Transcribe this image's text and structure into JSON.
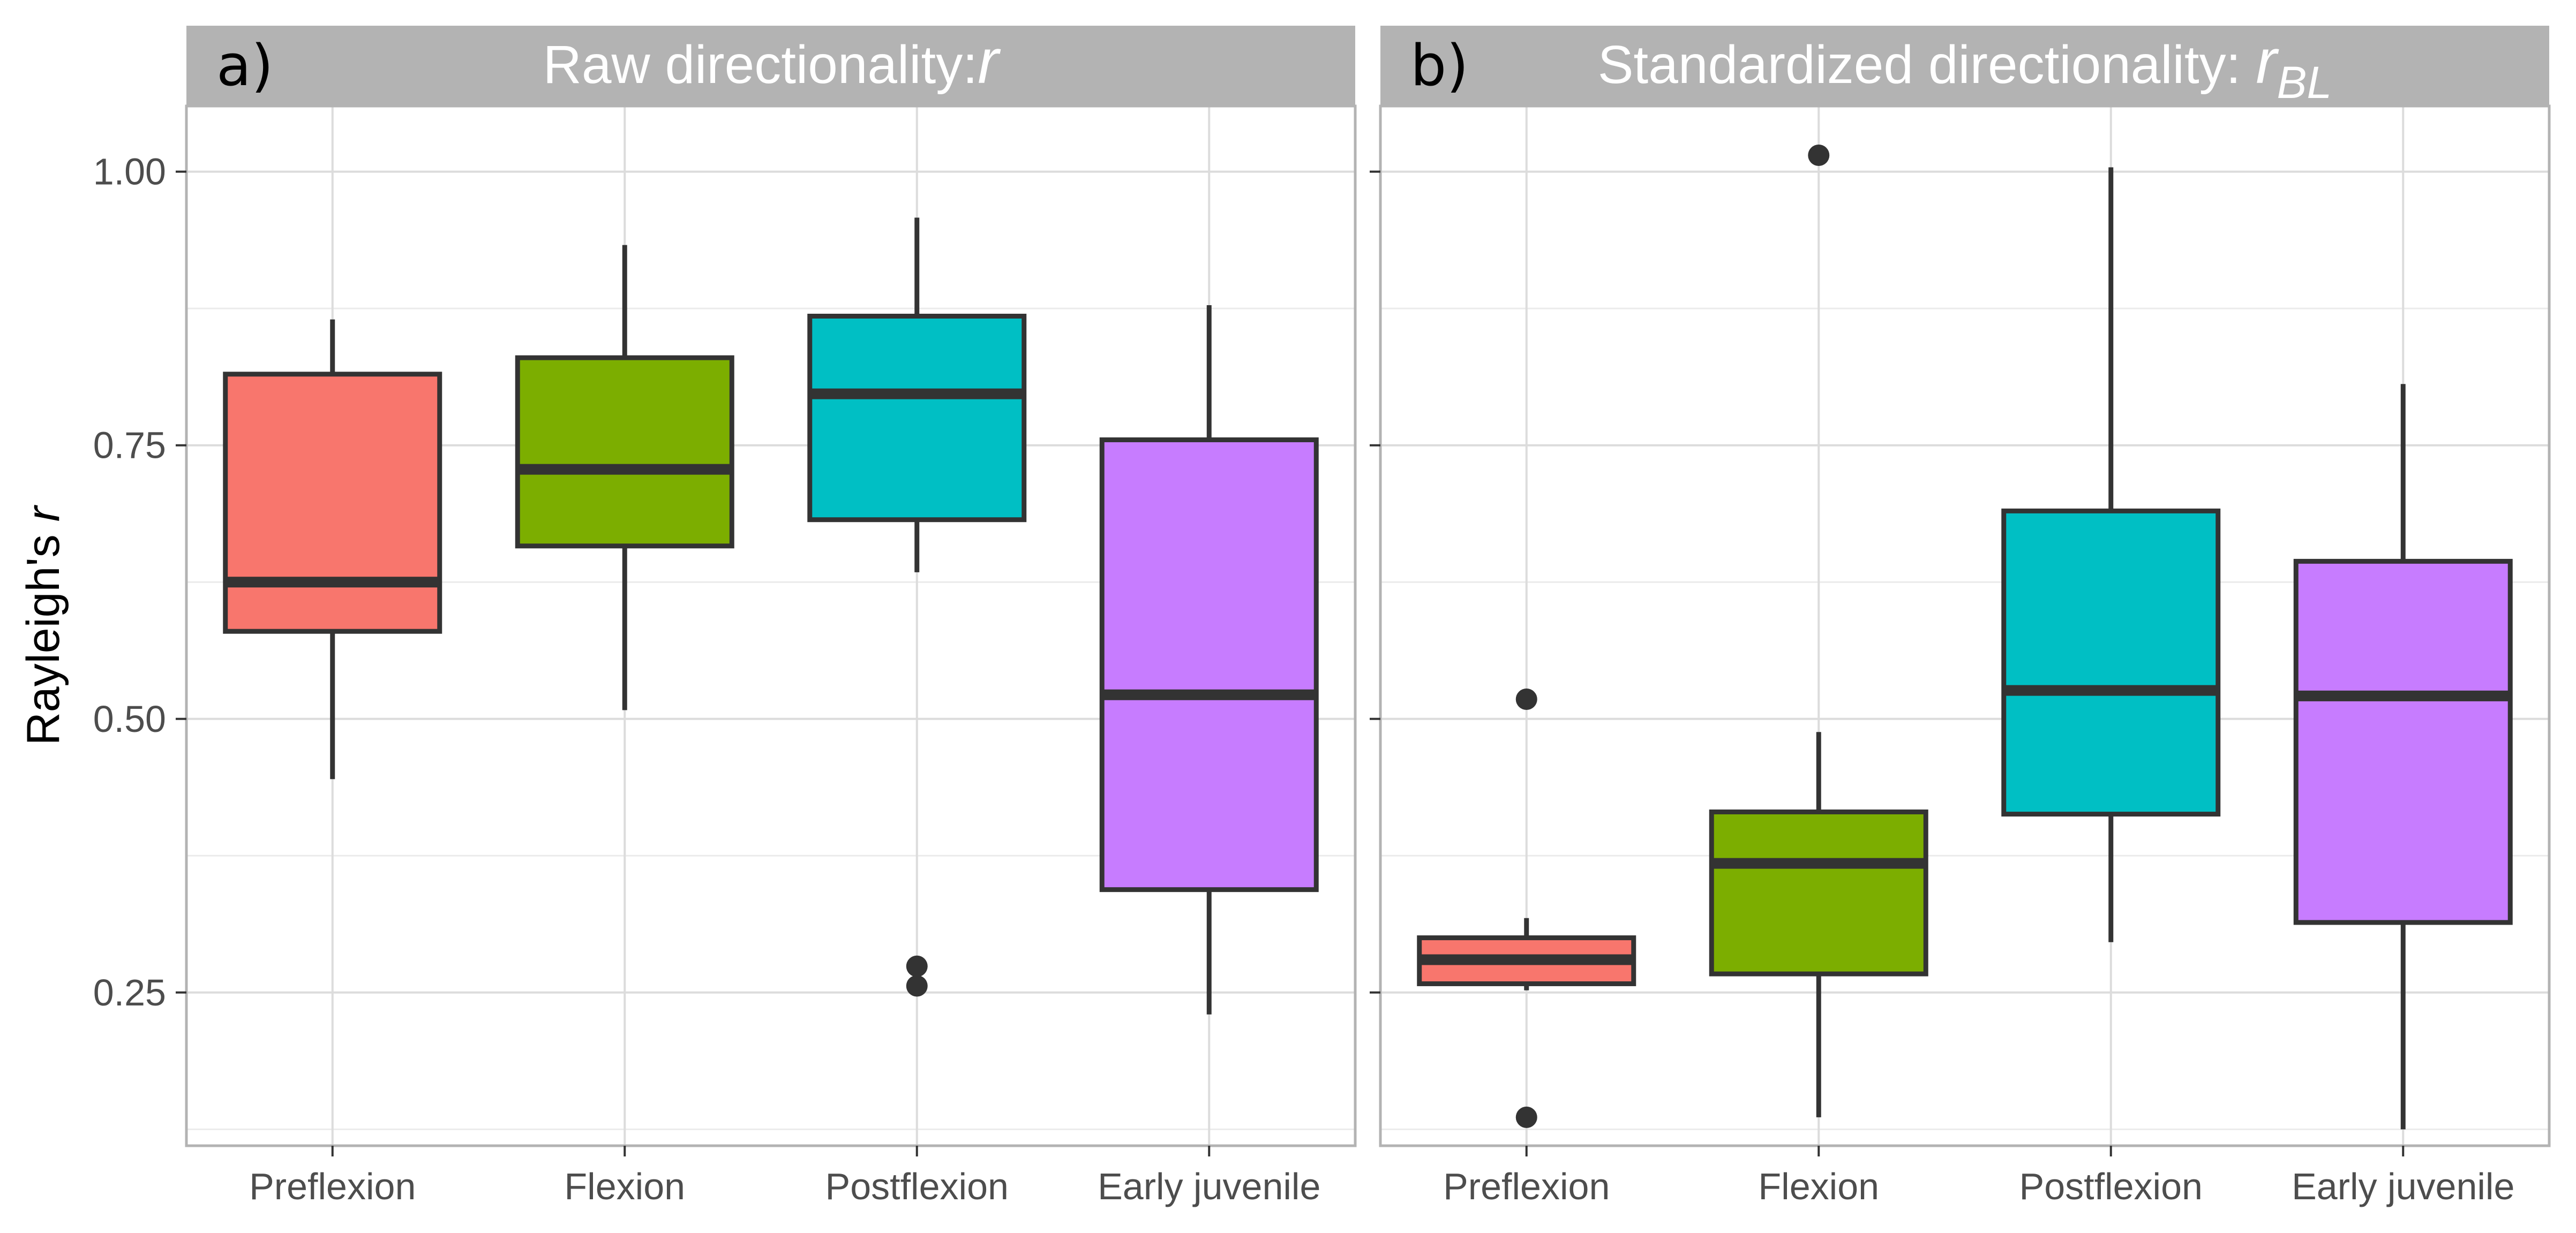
{
  "chart_data": [
    {
      "type": "boxplot",
      "tag": "a)",
      "title_prefix": "Raw directionality:",
      "title_symbol": "r",
      "title_subscript": "",
      "ylabel_prefix": "Rayleigh's",
      "ylabel_symbol": "r",
      "ylim": [
        0.11,
        1.06
      ],
      "yticks": [
        0.25,
        0.5,
        0.75,
        1.0
      ],
      "ytick_labels": [
        "0.25",
        "0.50",
        "0.75",
        "1.00"
      ],
      "ygrid_minor": [
        0.125,
        0.375,
        0.625,
        0.875
      ],
      "categories": [
        "Preflexion",
        "Flexion",
        "Postflexion",
        "Early juvenile"
      ],
      "colors": [
        "#F8766D",
        "#7CAE00",
        "#00BFC4",
        "#C77CFF"
      ],
      "boxes": [
        {
          "whisker_low": 0.445,
          "q1": 0.58,
          "median": 0.625,
          "q3": 0.815,
          "whisker_high": 0.865,
          "outliers": []
        },
        {
          "whisker_low": 0.508,
          "q1": 0.658,
          "median": 0.728,
          "q3": 0.83,
          "whisker_high": 0.933,
          "outliers": []
        },
        {
          "whisker_low": 0.634,
          "q1": 0.682,
          "median": 0.797,
          "q3": 0.868,
          "whisker_high": 0.958,
          "outliers": [
            0.274,
            0.256
          ]
        },
        {
          "whisker_low": 0.23,
          "q1": 0.344,
          "median": 0.522,
          "q3": 0.755,
          "whisker_high": 0.878,
          "outliers": []
        }
      ]
    },
    {
      "type": "boxplot",
      "tag": "b)",
      "title_prefix": "Standardized directionality:",
      "title_symbol": "r",
      "title_subscript": "BL",
      "ylim": [
        0.11,
        1.06
      ],
      "yticks": [
        0.25,
        0.5,
        0.75,
        1.0
      ],
      "ygrid_minor": [
        0.125,
        0.375,
        0.625,
        0.875
      ],
      "categories": [
        "Preflexion",
        "Flexion",
        "Postflexion",
        "Early juvenile"
      ],
      "colors": [
        "#F8766D",
        "#7CAE00",
        "#00BFC4",
        "#C77CFF"
      ],
      "boxes": [
        {
          "whisker_low": 0.252,
          "q1": 0.258,
          "median": 0.28,
          "q3": 0.3,
          "whisker_high": 0.318,
          "outliers": [
            0.518,
            0.136
          ]
        },
        {
          "whisker_low": 0.136,
          "q1": 0.267,
          "median": 0.368,
          "q3": 0.415,
          "whisker_high": 0.488,
          "outliers": [
            1.015
          ]
        },
        {
          "whisker_low": 0.296,
          "q1": 0.413,
          "median": 0.526,
          "q3": 0.69,
          "whisker_high": 1.004,
          "outliers": []
        },
        {
          "whisker_low": 0.125,
          "q1": 0.314,
          "median": 0.521,
          "q3": 0.644,
          "whisker_high": 0.806,
          "outliers": []
        }
      ]
    }
  ]
}
